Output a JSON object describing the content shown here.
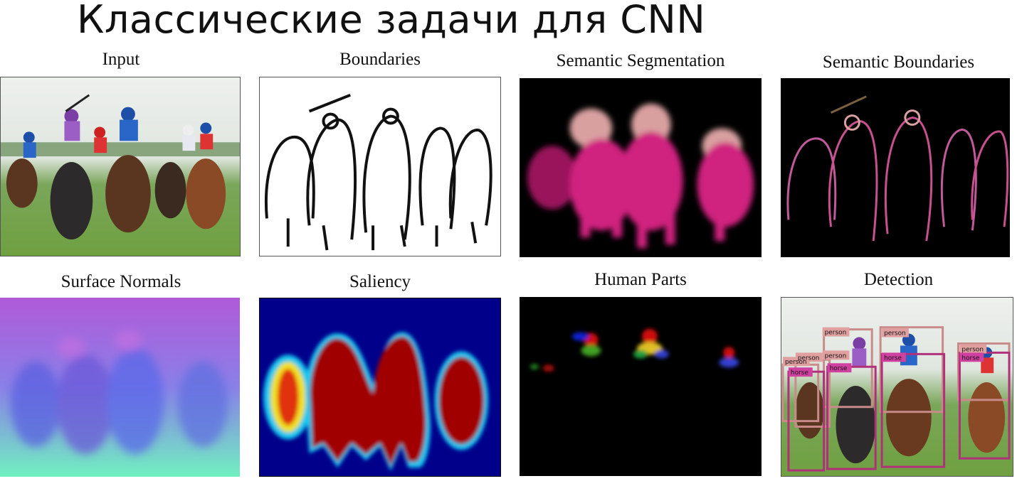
{
  "slide": {
    "title": "Классические задачи для CNN"
  },
  "panels": [
    {
      "label": "Input"
    },
    {
      "label": "Boundaries"
    },
    {
      "label": "Semantic Segmentation"
    },
    {
      "label": "Semantic Boundaries"
    },
    {
      "label": "Surface Normals"
    },
    {
      "label": "Saliency"
    },
    {
      "label": "Human Parts"
    },
    {
      "label": "Detection"
    }
  ],
  "detection": {
    "person_label": "person",
    "horse_label": "horse",
    "person_color": "#c98a8a",
    "horse_color": "#b0307a"
  },
  "colors": {
    "seg_horse": "#d0207f",
    "seg_person": "#d9a0a0",
    "saliency_bg": "#00008b",
    "saliency_hot": "#a00000"
  }
}
